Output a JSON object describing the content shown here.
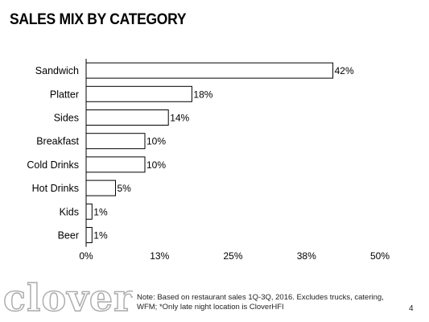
{
  "slide": {
    "title": "SALES MIX BY CATEGORY",
    "logo_text": "clover",
    "note": "Note: Based on restaurant sales 1Q-3Q, 2016. Excludes trucks, catering, WFM; *Only late night location is CloverHFI",
    "page_number": "4"
  },
  "chart_data": {
    "type": "bar",
    "orientation": "horizontal",
    "title": "SALES MIX BY CATEGORY",
    "categories": [
      "Sandwich",
      "Platter",
      "Sides",
      "Breakfast",
      "Cold Drinks",
      "Hot Drinks",
      "Kids",
      "Beer"
    ],
    "values": [
      42,
      18,
      14,
      10,
      10,
      5,
      1,
      1
    ],
    "data_labels": [
      "42%",
      "18%",
      "14%",
      "10%",
      "10%",
      "5%",
      "1%",
      "1%"
    ],
    "xlim": [
      0,
      50
    ],
    "xticks": [
      0,
      12.5,
      25,
      37.5,
      50
    ],
    "xtick_labels": [
      "0%",
      "13%",
      "25%",
      "38%",
      "50%"
    ],
    "grid": false,
    "legend": "none",
    "colors": {
      "bar_fill": "#ffffff",
      "bar_stroke": "#000000",
      "axis": "#000000",
      "logo": "#aaaaaa"
    }
  }
}
